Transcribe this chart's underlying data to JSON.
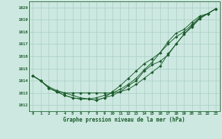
{
  "title": "Graphe pression niveau de la mer (hPa)",
  "bg_color": "#cce8e0",
  "line_color": "#1a5c2a",
  "grid_color": "#a8ccc4",
  "xlim": [
    -0.5,
    23.5
  ],
  "ylim": [
    1011.5,
    1020.5
  ],
  "xticks": [
    0,
    1,
    2,
    3,
    4,
    5,
    6,
    7,
    8,
    9,
    10,
    11,
    12,
    13,
    14,
    15,
    16,
    17,
    18,
    19,
    20,
    21,
    22,
    23
  ],
  "yticks": [
    1012,
    1013,
    1014,
    1015,
    1016,
    1017,
    1018,
    1019,
    1020
  ],
  "series": [
    [
      1014.4,
      1014.0,
      1013.4,
      1013.1,
      1012.8,
      1012.6,
      1012.5,
      1012.5,
      1012.4,
      1012.6,
      1012.8,
      1013.1,
      1013.6,
      1014.0,
      1014.8,
      1015.3,
      1015.6,
      1016.1,
      1017.0,
      1017.8,
      1018.4,
      1019.1,
      1019.5,
      1019.9
    ],
    [
      1014.4,
      1014.0,
      1013.4,
      1013.1,
      1012.8,
      1012.6,
      1012.5,
      1012.5,
      1012.4,
      1012.6,
      1013.1,
      1013.6,
      1014.2,
      1014.8,
      1015.4,
      1015.8,
      1016.3,
      1017.0,
      1017.6,
      1018.0,
      1018.6,
      1019.2,
      1019.5,
      1019.9
    ],
    [
      1014.4,
      1014.0,
      1013.5,
      1013.2,
      1013.0,
      1012.8,
      1012.6,
      1012.5,
      1012.6,
      1012.8,
      1013.0,
      1013.3,
      1013.7,
      1014.2,
      1014.9,
      1015.5,
      1016.3,
      1017.2,
      1017.9,
      1018.2,
      1018.8,
      1019.3,
      1019.5,
      1019.9
    ],
    [
      1014.4,
      1014.0,
      1013.4,
      1013.1,
      1013.0,
      1013.0,
      1013.0,
      1013.0,
      1013.0,
      1013.0,
      1013.0,
      1013.1,
      1013.3,
      1013.7,
      1014.2,
      1014.7,
      1015.2,
      1016.2,
      1017.0,
      1017.8,
      1018.5,
      1019.1,
      1019.5,
      1019.9
    ]
  ],
  "figsize": [
    3.2,
    2.0
  ],
  "dpi": 100
}
